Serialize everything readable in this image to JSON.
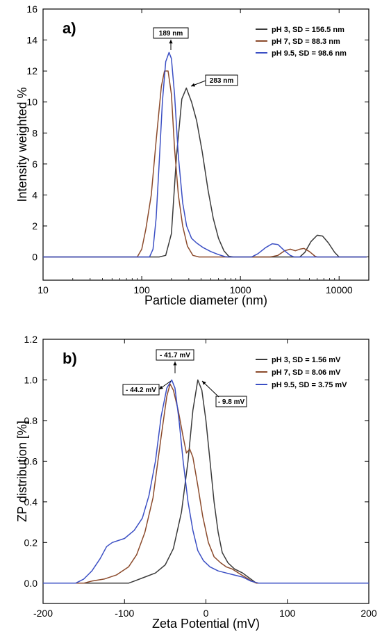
{
  "chart_data": [
    {
      "type": "line",
      "panel_label": "a)",
      "xlabel": "Particle diameter (nm)",
      "ylabel": "Intensity weighted %",
      "x_scale": "log",
      "xlim": [
        10,
        20000
      ],
      "ylim": [
        -1.5,
        16
      ],
      "x_ticks": [
        10,
        100,
        1000,
        10000
      ],
      "x_tick_labels": [
        "10",
        "100",
        "1000",
        "10000"
      ],
      "y_ticks": [
        0,
        2,
        4,
        6,
        8,
        10,
        12,
        14,
        16
      ],
      "y_tick_labels": [
        "0",
        "2",
        "4",
        "6",
        "8",
        "10",
        "12",
        "14",
        "16"
      ],
      "grid": false,
      "legend_position": "top-right",
      "series": [
        {
          "name": "pH 3, SD = 156.5 nm",
          "color": "#3a3a3a",
          "points": [
            [
              10,
              0
            ],
            [
              150,
              0
            ],
            [
              175,
              0.1
            ],
            [
              200,
              1.5
            ],
            [
              225,
              6.5
            ],
            [
              255,
              10.2
            ],
            [
              283,
              10.9
            ],
            [
              320,
              10.0
            ],
            [
              360,
              8.8
            ],
            [
              410,
              6.8
            ],
            [
              470,
              4.3
            ],
            [
              530,
              2.5
            ],
            [
              600,
              1.2
            ],
            [
              680,
              0.4
            ],
            [
              760,
              0.05
            ],
            [
              850,
              0
            ],
            [
              4000,
              0
            ],
            [
              4500,
              0.3
            ],
            [
              5200,
              1.0
            ],
            [
              6000,
              1.4
            ],
            [
              6800,
              1.35
            ],
            [
              7800,
              0.9
            ],
            [
              9000,
              0.3
            ],
            [
              10000,
              0
            ],
            [
              19000,
              0
            ]
          ]
        },
        {
          "name": "pH 7, SD =  88.3 nm",
          "color": "#8b4a2b",
          "points": [
            [
              10,
              0
            ],
            [
              90,
              0
            ],
            [
              100,
              0.5
            ],
            [
              110,
              1.8
            ],
            [
              125,
              4.0
            ],
            [
              140,
              7.5
            ],
            [
              158,
              11.0
            ],
            [
              170,
              12.0
            ],
            [
              185,
              12.0
            ],
            [
              200,
              10.5
            ],
            [
              215,
              7.0
            ],
            [
              235,
              4.0
            ],
            [
              260,
              2.0
            ],
            [
              290,
              0.7
            ],
            [
              330,
              0.1
            ],
            [
              380,
              0
            ],
            [
              2000,
              0
            ],
            [
              2400,
              0.1
            ],
            [
              2800,
              0.4
            ],
            [
              3200,
              0.5
            ],
            [
              3600,
              0.4
            ],
            [
              4000,
              0.5
            ],
            [
              4400,
              0.55
            ],
            [
              5000,
              0.35
            ],
            [
              5700,
              0.05
            ],
            [
              6000,
              0
            ],
            [
              19000,
              0
            ]
          ]
        },
        {
          "name": "pH 9.5, SD = 98.6 nm",
          "color": "#3b4fc4",
          "points": [
            [
              10,
              0
            ],
            [
              120,
              0
            ],
            [
              130,
              0.5
            ],
            [
              140,
              2.5
            ],
            [
              150,
              6.0
            ],
            [
              162,
              10.0
            ],
            [
              175,
              12.6
            ],
            [
              189,
              13.2
            ],
            [
              200,
              12.8
            ],
            [
              215,
              10.5
            ],
            [
              235,
              6.5
            ],
            [
              260,
              3.5
            ],
            [
              285,
              2.0
            ],
            [
              320,
              1.2
            ],
            [
              360,
              0.9
            ],
            [
              420,
              0.6
            ],
            [
              500,
              0.35
            ],
            [
              600,
              0.15
            ],
            [
              700,
              0.02
            ],
            [
              750,
              0
            ],
            [
              1300,
              0
            ],
            [
              1500,
              0.2
            ],
            [
              1800,
              0.6
            ],
            [
              2100,
              0.85
            ],
            [
              2400,
              0.8
            ],
            [
              2800,
              0.4
            ],
            [
              3200,
              0.1
            ],
            [
              3500,
              0
            ],
            [
              19000,
              0
            ]
          ]
        }
      ],
      "annotations": [
        {
          "text": "189 nm",
          "x": 189,
          "y": 13.2
        },
        {
          "text": "283 nm",
          "x": 283,
          "y": 10.9
        }
      ]
    },
    {
      "type": "line",
      "panel_label": "b)",
      "xlabel": "Zeta Potential (mV)",
      "ylabel": "ZP distribution [%]",
      "x_scale": "linear",
      "xlim": [
        -200,
        200
      ],
      "ylim": [
        -0.1,
        1.2
      ],
      "x_ticks": [
        -200,
        -100,
        0,
        100,
        200
      ],
      "x_tick_labels": [
        "-200",
        "-100",
        "0",
        "100",
        "200"
      ],
      "y_ticks": [
        0,
        0.2,
        0.4,
        0.6,
        0.8,
        1.0,
        1.2
      ],
      "y_tick_labels": [
        "0.0",
        "0.2",
        "0.4",
        "0.6",
        "0.8",
        "1.0",
        "1.2"
      ],
      "grid": false,
      "legend_position": "top-right",
      "series": [
        {
          "name": "pH 3, SD = 1.56 mV",
          "color": "#3a3a3a",
          "points": [
            [
              -200,
              0
            ],
            [
              -95,
              0
            ],
            [
              -88,
              0.01
            ],
            [
              -75,
              0.03
            ],
            [
              -62,
              0.05
            ],
            [
              -50,
              0.09
            ],
            [
              -40,
              0.17
            ],
            [
              -30,
              0.35
            ],
            [
              -22,
              0.6
            ],
            [
              -16,
              0.85
            ],
            [
              -10,
              1.0
            ],
            [
              -5,
              0.95
            ],
            [
              0,
              0.8
            ],
            [
              5,
              0.6
            ],
            [
              10,
              0.4
            ],
            [
              15,
              0.25
            ],
            [
              20,
              0.15
            ],
            [
              27,
              0.1
            ],
            [
              35,
              0.07
            ],
            [
              45,
              0.05
            ],
            [
              55,
              0.02
            ],
            [
              62,
              0
            ],
            [
              200,
              0
            ]
          ]
        },
        {
          "name": "pH 7, SD = 8.06 mV",
          "color": "#8b4a2b",
          "points": [
            [
              -200,
              0
            ],
            [
              -150,
              0
            ],
            [
              -140,
              0.01
            ],
            [
              -125,
              0.02
            ],
            [
              -110,
              0.04
            ],
            [
              -95,
              0.08
            ],
            [
              -85,
              0.14
            ],
            [
              -75,
              0.25
            ],
            [
              -65,
              0.42
            ],
            [
              -55,
              0.72
            ],
            [
              -48,
              0.92
            ],
            [
              -44,
              0.98
            ],
            [
              -40,
              0.95
            ],
            [
              -34,
              0.85
            ],
            [
              -28,
              0.72
            ],
            [
              -24,
              0.64
            ],
            [
              -20,
              0.66
            ],
            [
              -16,
              0.62
            ],
            [
              -10,
              0.48
            ],
            [
              -4,
              0.33
            ],
            [
              3,
              0.2
            ],
            [
              10,
              0.13
            ],
            [
              18,
              0.1
            ],
            [
              25,
              0.08
            ],
            [
              32,
              0.07
            ],
            [
              40,
              0.05
            ],
            [
              48,
              0.03
            ],
            [
              56,
              0.01
            ],
            [
              62,
              0
            ],
            [
              200,
              0
            ]
          ]
        },
        {
          "name": "pH 9.5, SD = 3.75 mV",
          "color": "#3b4fc4",
          "points": [
            [
              -200,
              0
            ],
            [
              -160,
              0
            ],
            [
              -150,
              0.02
            ],
            [
              -140,
              0.06
            ],
            [
              -130,
              0.12
            ],
            [
              -122,
              0.18
            ],
            [
              -115,
              0.2
            ],
            [
              -100,
              0.22
            ],
            [
              -88,
              0.26
            ],
            [
              -78,
              0.32
            ],
            [
              -70,
              0.43
            ],
            [
              -62,
              0.6
            ],
            [
              -55,
              0.82
            ],
            [
              -48,
              0.96
            ],
            [
              -42,
              1.0
            ],
            [
              -38,
              0.96
            ],
            [
              -33,
              0.8
            ],
            [
              -28,
              0.6
            ],
            [
              -22,
              0.4
            ],
            [
              -16,
              0.26
            ],
            [
              -10,
              0.16
            ],
            [
              -3,
              0.11
            ],
            [
              5,
              0.08
            ],
            [
              15,
              0.06
            ],
            [
              25,
              0.05
            ],
            [
              35,
              0.04
            ],
            [
              45,
              0.03
            ],
            [
              55,
              0.01
            ],
            [
              65,
              0
            ],
            [
              200,
              0
            ]
          ]
        }
      ],
      "annotations": [
        {
          "text": "- 41.7 mV",
          "x": -41.7,
          "y": 1.0
        },
        {
          "text": "- 44.2 mV",
          "x": -44.2,
          "y": 0.99
        },
        {
          "text": "- 9.8 mV",
          "x": -9.8,
          "y": 1.0
        }
      ]
    }
  ]
}
